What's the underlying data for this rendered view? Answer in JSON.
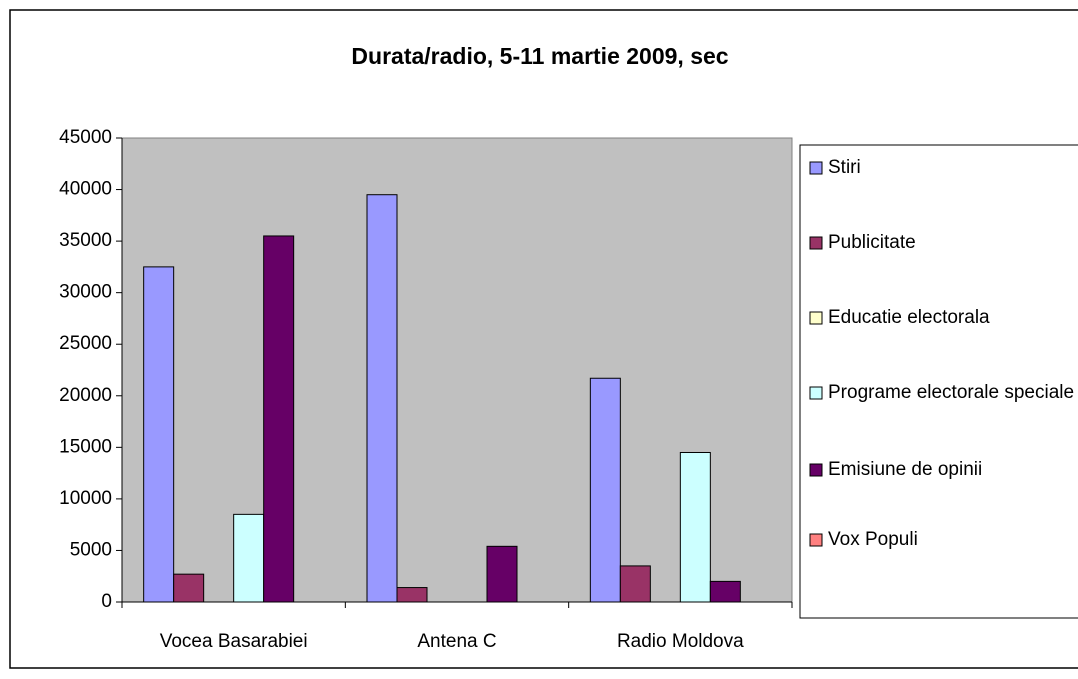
{
  "chart_data": {
    "type": "bar",
    "title": "Durata/radio, 5-11 martie 2009, sec",
    "categories": [
      "Vocea Basarabiei",
      "Antena C",
      "Radio Moldova"
    ],
    "series": [
      {
        "name": "Stiri",
        "color": "#9999ff",
        "values": [
          32500,
          39500,
          21700
        ]
      },
      {
        "name": "Publicitate",
        "color": "#993366",
        "values": [
          2700,
          1400,
          3500
        ]
      },
      {
        "name": "Educatie electorala",
        "color": "#ffffcc",
        "values": [
          0,
          0,
          0
        ]
      },
      {
        "name": "Programe electorale speciale",
        "color": "#ccffff",
        "values": [
          8500,
          0,
          14500
        ]
      },
      {
        "name": "Emisiune de opinii",
        "color": "#660066",
        "values": [
          35500,
          5400,
          2000
        ]
      },
      {
        "name": "Vox Populi",
        "color": "#ff8080",
        "values": [
          0,
          0,
          0
        ]
      }
    ],
    "ylim": [
      0,
      45000
    ],
    "yticks": [
      0,
      5000,
      10000,
      15000,
      20000,
      25000,
      30000,
      35000,
      40000,
      45000
    ],
    "grid": false,
    "legend": "right"
  }
}
